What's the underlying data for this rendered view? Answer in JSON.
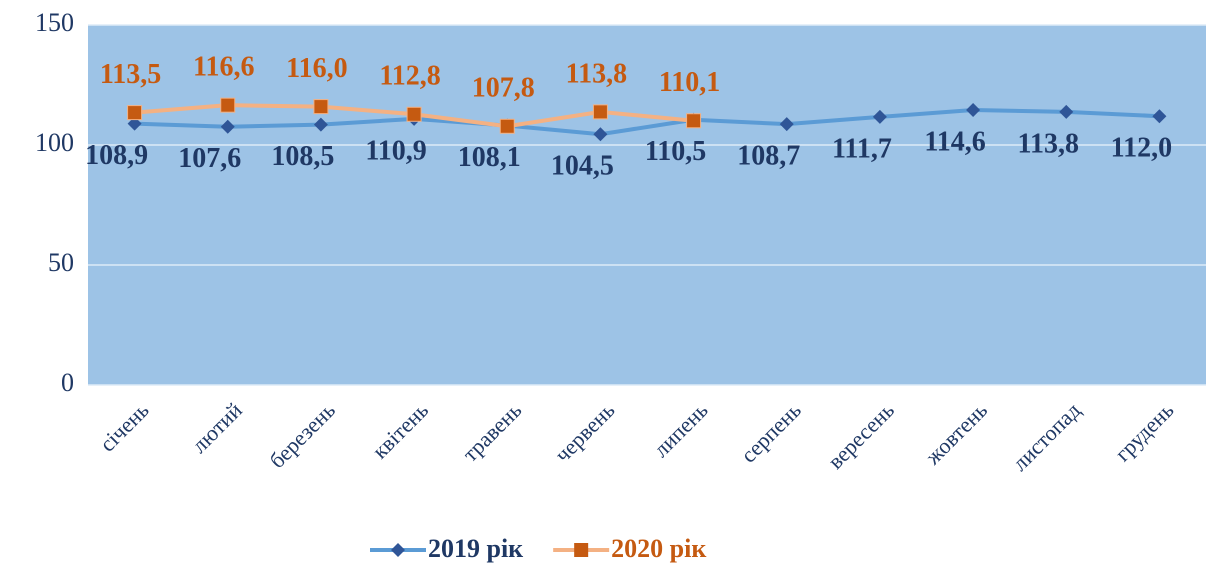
{
  "chart_data": {
    "type": "line",
    "categories": [
      "січень",
      "лютий",
      "березень",
      "квітень",
      "травень",
      "червень",
      "липень",
      "серпень",
      "вересень",
      "жовтень",
      "листопад",
      "грудень"
    ],
    "series": [
      {
        "name": "2019 рік",
        "color": "#5B9BD5",
        "marker_color": "#2F5597",
        "label_color": "#1F3864",
        "marker": "diamond",
        "values": [
          108.9,
          107.6,
          108.5,
          110.9,
          108.1,
          104.5,
          110.5,
          108.7,
          111.7,
          114.6,
          113.8,
          112.0
        ],
        "value_labels": [
          "108,9",
          "107,6",
          "108,5",
          "110,9",
          "108,1",
          "104,5",
          "110,5",
          "108,7",
          "111,7",
          "114,6",
          "113,8",
          "112,0"
        ]
      },
      {
        "name": "2020 рік",
        "color": "#F4B183",
        "marker_color": "#C55A11",
        "label_color": "#C55A11",
        "marker": "square",
        "values": [
          113.5,
          116.6,
          116.0,
          112.8,
          107.8,
          113.8,
          110.1,
          null,
          null,
          null,
          null,
          null
        ],
        "value_labels": [
          "113,5",
          "116,6",
          "116,0",
          "112,8",
          "107,8",
          "113,8",
          "110,1",
          null,
          null,
          null,
          null,
          null
        ]
      }
    ],
    "ylim": [
      0,
      150
    ],
    "yticks": [
      0,
      50,
      100,
      150
    ],
    "grid": true,
    "plot_background": "#9DC3E6",
    "legend": "bottom"
  }
}
